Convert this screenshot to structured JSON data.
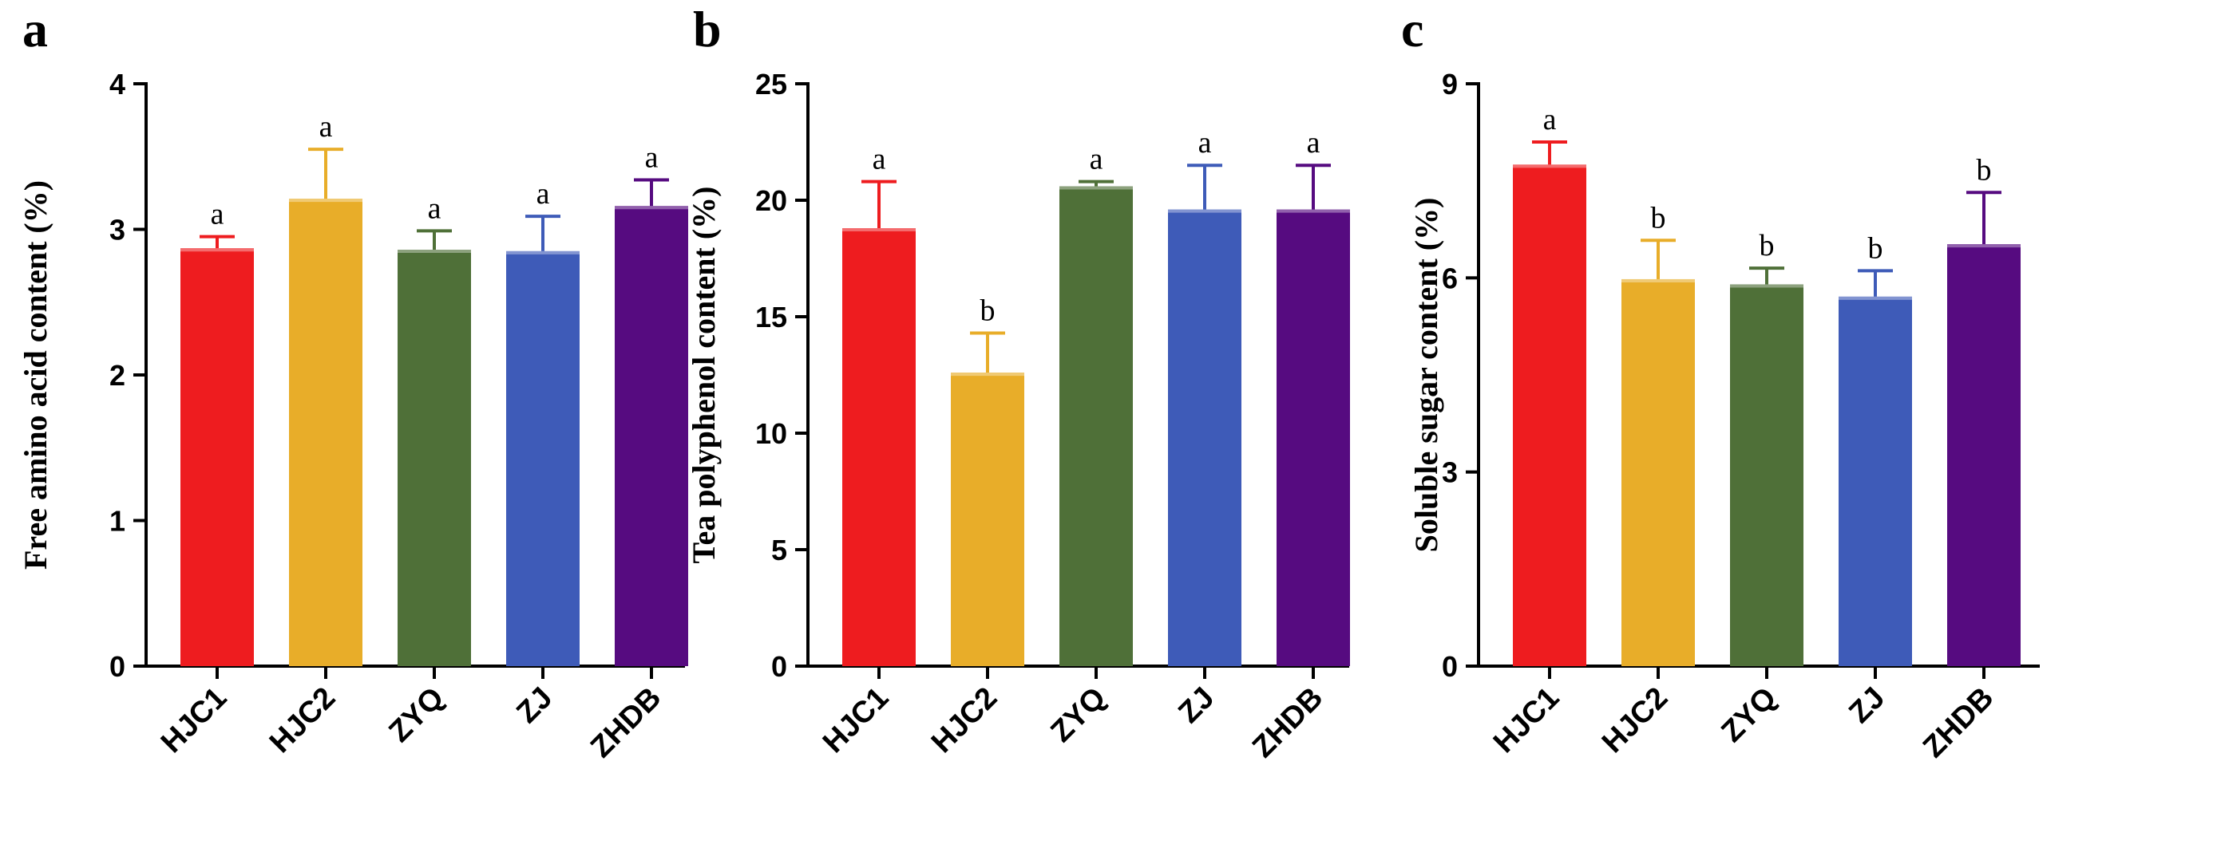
{
  "colors": [
    "#ee1c1f",
    "#e8ad29",
    "#4f7038",
    "#3e5bb8",
    "#560b80"
  ],
  "chart_data": [
    {
      "type": "bar",
      "panel": "a",
      "ylabel": "Free amino acid content (%)",
      "ylim": [
        0,
        4
      ],
      "yticks": [
        "0",
        "1",
        "2",
        "3",
        "4"
      ],
      "categories": [
        "HJC1",
        "HJC2",
        "ZYQ",
        "ZJ",
        "ZHDB"
      ],
      "values": [
        2.87,
        3.21,
        2.86,
        2.85,
        3.16
      ],
      "errors": [
        0.08,
        0.34,
        0.13,
        0.24,
        0.18
      ],
      "letters": [
        "a",
        "a",
        "a",
        "a",
        "a"
      ]
    },
    {
      "type": "bar",
      "panel": "b",
      "ylabel": "Tea polyphenol content (%)",
      "ylim": [
        0,
        25
      ],
      "yticks": [
        "0",
        "5",
        "10",
        "15",
        "20",
        "25"
      ],
      "categories": [
        "HJC1",
        "HJC2",
        "ZYQ",
        "ZJ",
        "ZHDB"
      ],
      "values": [
        18.8,
        12.6,
        20.6,
        19.6,
        19.6
      ],
      "errors": [
        2.0,
        1.7,
        0.2,
        1.9,
        1.9
      ],
      "letters": [
        "a",
        "b",
        "a",
        "a",
        "a"
      ]
    },
    {
      "type": "bar",
      "panel": "c",
      "ylabel": "Soluble sugar content (%)",
      "ylim": [
        0,
        9
      ],
      "yticks": [
        "0",
        "3",
        "6",
        "9"
      ],
      "categories": [
        "HJC1",
        "HJC2",
        "ZYQ",
        "ZJ",
        "ZHDB"
      ],
      "values": [
        7.75,
        5.98,
        5.9,
        5.71,
        6.52
      ],
      "errors": [
        0.35,
        0.6,
        0.25,
        0.4,
        0.8
      ],
      "letters": [
        "a",
        "b",
        "b",
        "b",
        "b"
      ]
    }
  ]
}
